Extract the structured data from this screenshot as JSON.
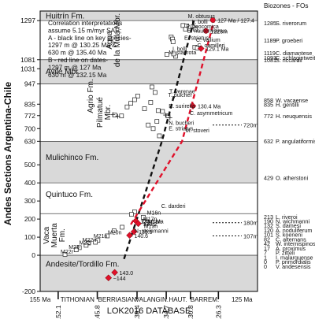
{
  "chart_data": {
    "type": "scatter",
    "ylabel": "Andes Sections Argentina-Chile",
    "y_unit": "m",
    "xlabel": "LOK2016 DATABASE",
    "x_unit": "Ma",
    "xlim": [
      155,
      120
    ],
    "ylim": [
      -200,
      1350
    ],
    "x_ticks": [
      "152.1",
      "145.8",
      "139.4",
      "134.7",
      "130.8",
      "126.3"
    ],
    "x_stage_labels": [
      {
        "label": "155 Ma",
        "x": 155
      },
      {
        "label": "TITHONIAN",
        "x": 149
      },
      {
        "label": "BERRIASIAN",
        "x": 142.6
      },
      {
        "label": "VALANGIN.",
        "x": 137
      },
      {
        "label": "HAUT.",
        "x": 132.8
      },
      {
        "label": "BARREM.",
        "x": 128.5
      },
      {
        "label": "125 Ma",
        "x": 122.5
      }
    ],
    "y_ticks": [
      -200,
      0,
      100,
      200,
      300,
      400,
      500,
      630,
      700,
      772,
      835,
      947,
      1031,
      1081,
      1297
    ],
    "stratigraphic_units": [
      {
        "label": "Huitrín Fm.",
        "from": 1297,
        "to": 1350,
        "shade": true
      },
      {
        "label": "Agua de la Mula Mbr.",
        "from": 1081,
        "to": 1297,
        "shade": false
      },
      {
        "label": "Avilé Mbr.",
        "from": 947,
        "to": 1081,
        "shade": true
      },
      {
        "label": "Agrio Fm.",
        "from": 630,
        "to": 1297,
        "shade": false
      },
      {
        "label": "Pilmatué Mbr.",
        "from": 630,
        "to": 947,
        "shade": false
      },
      {
        "label": "Mulichinco Fm.",
        "from": 400,
        "to": 630,
        "shade": true
      },
      {
        "label": "Quintuco Fm.",
        "from": 230,
        "to": 400,
        "shade": false
      },
      {
        "label": "Vaca Muerta Fm.",
        "from": 0,
        "to": 230,
        "shade": false
      },
      {
        "label": "Andesite/Tordillo Fm.",
        "from": -200,
        "to": 0,
        "shade": true
      }
    ],
    "legend_text": [
      "Correlation interpretations",
      "assume 5.15 m/myr SAR;",
      "A - black line on key species-",
      "1297 m @ 130.25 Ma &",
      "630 m @ 135.40 Ma",
      "B - red line on dates-",
      "1297 m @ 127 Ma",
      "630 m @ 132.15 Ma"
    ],
    "series": [
      {
        "name": "A - black line on key species",
        "color": "#111111",
        "style": "dashed",
        "points": [
          [
            141.5,
            -20
          ],
          [
            135.4,
            630
          ],
          [
            130.25,
            1297
          ]
        ]
      },
      {
        "name": "B - red line on dates",
        "color": "#e0102a",
        "style": "dashed",
        "points": [
          [
            140.4,
            170
          ],
          [
            132.15,
            630
          ],
          [
            127,
            1297
          ]
        ]
      }
    ],
    "dated_samples": [
      {
        "label": "127 Ma / 127.4",
        "x": 127.2,
        "y": 1300,
        "color": "#e0102a"
      },
      {
        "label": "1228m",
        "x": 128.3,
        "y": 1240,
        "color": "#e0102a"
      },
      {
        "label": "129.1 Ma",
        "x": 129.1,
        "y": 1143,
        "color": "#e0102a"
      },
      {
        "label": "130.4 Ma",
        "x": 130.4,
        "y": 825,
        "color": "#e0102a"
      },
      {
        "label": "139.6 Ma",
        "x": 139.6,
        "y": 190,
        "color": "#e0102a"
      },
      {
        "label": "139.2",
        "x": 139.2,
        "y": 175,
        "color": "#e0102a"
      },
      {
        "label": "139.9",
        "x": 139.9,
        "y": 130,
        "color": "#e0102a"
      },
      {
        "label": "140.6",
        "x": 140.6,
        "y": 110,
        "color": "#e0102a"
      },
      {
        "label": "143.0",
        "x": 143.0,
        "y": -95,
        "color": "#e0102a"
      },
      {
        "label": "~144",
        "x": 144.0,
        "y": -125,
        "color": "#e0102a"
      }
    ],
    "fossil_points": [
      [
        132,
        1270
      ],
      [
        131.4,
        1268
      ],
      [
        130.4,
        1262
      ],
      [
        130,
        1250
      ],
      [
        131.6,
        1250
      ],
      [
        133.9,
        1207
      ],
      [
        133.7,
        1195
      ],
      [
        133.6,
        1180
      ],
      [
        130.1,
        1150
      ],
      [
        129.7,
        1145
      ],
      [
        134.6,
        1110
      ],
      [
        133.2,
        1100
      ],
      [
        133.5,
        1113
      ],
      [
        137,
        930
      ],
      [
        136.5,
        900
      ],
      [
        139.3,
        880
      ],
      [
        139.8,
        860
      ],
      [
        140.4,
        840
      ],
      [
        141,
        820
      ],
      [
        137.2,
        845
      ],
      [
        138.2,
        810
      ],
      [
        136,
        800
      ],
      [
        135.3,
        795
      ],
      [
        134.4,
        770
      ],
      [
        137.6,
        720
      ],
      [
        136.2,
        740
      ],
      [
        136.8,
        700
      ],
      [
        135.8,
        660
      ],
      [
        141.9,
        770
      ],
      [
        143,
        775
      ],
      [
        139.8,
        240
      ],
      [
        140.3,
        226
      ],
      [
        138.4,
        210
      ],
      [
        138.1,
        185
      ],
      [
        137.7,
        178
      ],
      [
        141.8,
        155
      ],
      [
        143.1,
        135
      ],
      [
        144.2,
        107
      ],
      [
        145.7,
        82
      ],
      [
        146.1,
        72
      ],
      [
        147.2,
        68
      ],
      [
        147.6,
        55
      ],
      [
        148.7,
        42
      ],
      [
        149.2,
        30
      ],
      [
        151,
        5
      ]
    ],
    "species_annotations": [
      {
        "label": "M. obtusus",
        "x": 131.2,
        "y": 1310
      },
      {
        "label": "L. bolli",
        "x": 130.6,
        "y": 1280
      },
      {
        "label": "P. neocomica",
        "x": 131.5,
        "y": 1255
      },
      {
        "label": "E. hauterivianus",
        "x": 131.3,
        "y": 1230
      },
      {
        "label": "E. striatus",
        "x": 131.8,
        "y": 1190
      },
      {
        "label": "C. vallium",
        "x": 129.9,
        "y": 1180
      },
      {
        "label": "C. oamilleri",
        "x": 129.7,
        "y": 1150
      },
      {
        "label": "I. bolli",
        "x": 133.7,
        "y": 1130
      },
      {
        "label": "M. staurota",
        "x": 134.3,
        "y": 1110
      },
      {
        "label": "T. verenae",
        "x": 134.2,
        "y": 895
      },
      {
        "label": "T. pulcher",
        "x": 134.4,
        "y": 875
      },
      {
        "label": "R. surirella",
        "x": 134.3,
        "y": 815
      },
      {
        "label": "C. asymmetricum",
        "x": 130.9,
        "y": 775
      },
      {
        "label": "N. bucheri",
        "x": 134.3,
        "y": 720
      },
      {
        "label": "E. striatus",
        "x": 134.3,
        "y": 690
      },
      {
        "label": "M. stoveri",
        "x": 131.6,
        "y": 680
      },
      {
        "label": "C. darderi",
        "x": 135.5,
        "y": 262
      },
      {
        "label": "M16n",
        "x": 137.8,
        "y": 225
      },
      {
        "label": "M17n",
        "x": 138.4,
        "y": 190
      },
      {
        "label": "M18n",
        "x": 137.7,
        "y": 175
      },
      {
        "label": "M19n",
        "x": 138.3,
        "y": 150
      },
      {
        "label": "M20n",
        "x": 144.1,
        "y": 115
      },
      {
        "label": "M21n",
        "x": 146.4,
        "y": 95
      },
      {
        "label": "M22n",
        "x": 148.2,
        "y": 75
      },
      {
        "label": "M22r",
        "x": 148.7,
        "y": 60
      },
      {
        "label": "M23",
        "x": 150.4,
        "y": 35
      },
      {
        "label": "N. steinmanni",
        "x": 139.8,
        "y": 125
      },
      {
        "label": "M22r",
        "x": 151.7,
        "y": 10
      }
    ],
    "depth_markers": [
      {
        "label": "720m",
        "y": 720
      },
      {
        "label": "180m",
        "y": 180
      },
      {
        "label": "107m",
        "y": 107
      }
    ],
    "biozones_title": "Biozones - FOs",
    "biozones": [
      {
        "depth": "1285",
        "taxon": "S. riverorum",
        "y": 1285
      },
      {
        "depth": "1189",
        "taxon": "P. groeberi",
        "y": 1189
      },
      {
        "depth": "1119",
        "taxon": "C. diamantese",
        "y": 1119
      },
      {
        "depth": "1093",
        "taxon": "C. schlagintweiti",
        "y": 1093
      },
      {
        "depth": "1081",
        "taxon": "S. riccardii",
        "y": 1081
      },
      {
        "depth": "858",
        "taxon": "W. vacaense",
        "y": 858
      },
      {
        "depth": "835",
        "taxon": "H. gentilli",
        "y": 835
      },
      {
        "depth": "772",
        "taxon": "H. neuquensis",
        "y": 772
      },
      {
        "depth": "632",
        "taxon": "P. angulatiformis",
        "y": 632
      },
      {
        "depth": "429",
        "taxon": "O. atherstoni",
        "y": 429
      },
      {
        "depth": "213",
        "taxon": "L. riveroi",
        "y": 213
      },
      {
        "depth": "190",
        "taxon": "N. wichmanni",
        "y": 190
      },
      {
        "depth": "132",
        "taxon": "S. damesi",
        "y": 165
      },
      {
        "depth": "120",
        "taxon": "A. noduliferum",
        "y": 140
      },
      {
        "depth": "101",
        "taxon": "S. koeneni",
        "y": 115
      },
      {
        "depth": "82",
        "taxon": "C. alternans",
        "y": 90
      },
      {
        "depth": "42",
        "taxon": "W. internispinosum",
        "y": 65
      },
      {
        "depth": "17",
        "taxon": "A. proximus",
        "y": 40
      },
      {
        "depth": "7",
        "taxon": "P. zitteli",
        "y": 15
      },
      {
        "depth": "1",
        "taxon": "I. malarguense",
        "y": -10
      },
      {
        "depth": "0",
        "taxon": "P. primordialis",
        "y": -35
      },
      {
        "depth": "0",
        "taxon": "V. andesensis",
        "y": -60
      }
    ]
  }
}
